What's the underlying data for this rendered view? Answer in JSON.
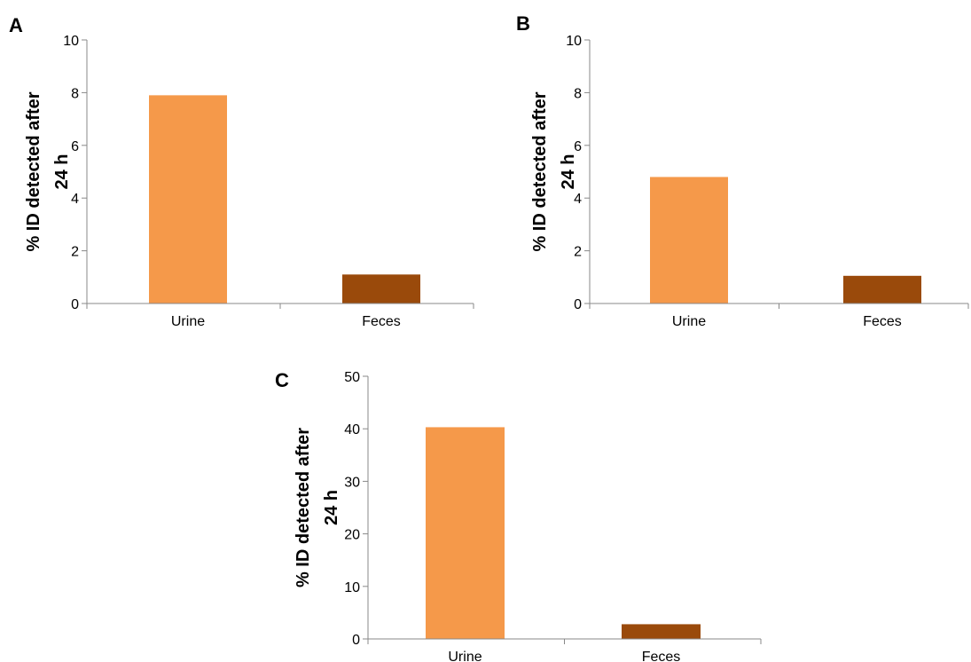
{
  "chart_data": [
    {
      "type": "bar",
      "panel_label": "A",
      "categories": [
        "Urine",
        "Feces"
      ],
      "values": [
        7.9,
        1.1
      ],
      "colors": [
        "#f5994a",
        "#9a4a0b"
      ],
      "ylabel_lines": [
        "% ID detected after",
        "24 h"
      ],
      "ylim": [
        0,
        10
      ],
      "yticks": [
        0,
        2,
        4,
        6,
        8,
        10
      ],
      "grid": false,
      "legend": "none"
    },
    {
      "type": "bar",
      "panel_label": "B",
      "categories": [
        "Urine",
        "Feces"
      ],
      "values": [
        4.8,
        1.05
      ],
      "colors": [
        "#f5994a",
        "#9a4a0b"
      ],
      "ylabel_lines": [
        "% ID detected after",
        "24 h"
      ],
      "ylim": [
        0,
        10
      ],
      "yticks": [
        0,
        2,
        4,
        6,
        8,
        10
      ],
      "grid": false,
      "legend": "none"
    },
    {
      "type": "bar",
      "panel_label": "C",
      "categories": [
        "Urine",
        "Feces"
      ],
      "values": [
        40.3,
        2.8
      ],
      "colors": [
        "#f5994a",
        "#9a4a0b"
      ],
      "ylabel_lines": [
        "% ID detected after",
        "24 h"
      ],
      "ylim": [
        0,
        50
      ],
      "yticks": [
        0,
        10,
        20,
        30,
        40,
        50
      ],
      "grid": false,
      "legend": "none"
    }
  ]
}
